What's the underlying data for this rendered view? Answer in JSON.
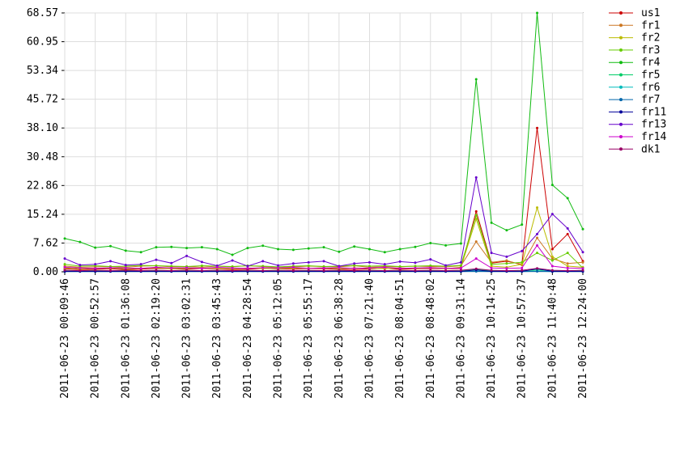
{
  "chart_data": {
    "type": "line",
    "categories": [
      "2011-06-23 00:09:46",
      null,
      "2011-06-23 00:52:57",
      null,
      "2011-06-23 01:36:08",
      null,
      "2011-06-23 02:19:20",
      null,
      "2011-06-23 03:02:31",
      null,
      "2011-06-23 03:45:43",
      null,
      "2011-06-23 04:28:54",
      null,
      "2011-06-23 05:12:05",
      null,
      "2011-06-23 05:55:17",
      null,
      "2011-06-23 06:38:28",
      null,
      "2011-06-23 07:21:40",
      null,
      "2011-06-23 08:04:51",
      null,
      "2011-06-23 08:48:02",
      null,
      "2011-06-23 09:31:14",
      null,
      "2011-06-23 10:14:25",
      null,
      "2011-06-23 10:57:37",
      null,
      "2011-06-23 11:40:48",
      null,
      "2011-06-23 12:24:00"
    ],
    "ylim": [
      0,
      68.57
    ],
    "yticks": [
      {
        "value": 0,
        "label": "0.00"
      },
      7.62,
      15.24,
      22.86,
      30.48,
      {
        "value": 38.1,
        "label": "38.10"
      },
      45.72,
      53.34,
      60.95,
      68.57
    ],
    "grid": true,
    "legend": "right",
    "series": [
      {
        "name": "us1",
        "color": "#cc0000",
        "values": [
          0.8,
          0.6,
          0.7,
          0.8,
          0.6,
          0.7,
          0.9,
          0.8,
          0.7,
          0.9,
          0.8,
          0.6,
          0.7,
          0.9,
          0.8,
          0.7,
          0.9,
          0.8,
          0.7,
          0.6,
          0.8,
          0.9,
          0.7,
          0.8,
          0.9,
          0.8,
          0.9,
          16,
          2.3,
          2.8,
          2,
          38.1,
          6,
          10,
          2.8
        ]
      },
      {
        "name": "fr1",
        "color": "#cc7722",
        "values": [
          1.5,
          1.2,
          1.3,
          1.4,
          1.2,
          1.5,
          1.6,
          1.3,
          1.4,
          1.2,
          1.5,
          1.3,
          1.6,
          1.4,
          1.2,
          1.3,
          1.5,
          1.4,
          1.3,
          1.6,
          1.2,
          1.4,
          1.3,
          1.5,
          1.4,
          1.3,
          1.6,
          8,
          2.5,
          3,
          1.8,
          9,
          3.5,
          2.2,
          2.5
        ]
      },
      {
        "name": "fr2",
        "color": "#bbbb00",
        "values": [
          1,
          0.8,
          0.9,
          1,
          0.8,
          0.9,
          1.1,
          0.8,
          0.9,
          1,
          0.9,
          0.8,
          1,
          0.9,
          0.8,
          1,
          0.9,
          1.1,
          0.8,
          1,
          0.9,
          0.8,
          1,
          0.9,
          1.1,
          0.8,
          1.2,
          14,
          1.5,
          1.2,
          2,
          17,
          4,
          1.5,
          1.2
        ]
      },
      {
        "name": "fr3",
        "color": "#66cc00",
        "values": [
          2,
          1.5,
          1.6,
          1.4,
          1.5,
          1.7,
          1.6,
          1.5,
          1.4,
          1.6,
          1.5,
          1.4,
          1.6,
          1.5,
          1.3,
          1.5,
          1.6,
          1.4,
          1.5,
          1.7,
          1.5,
          1.6,
          1.4,
          1.5,
          1.6,
          1.5,
          1.7,
          15,
          2,
          2.2,
          2.5,
          5,
          3,
          5,
          1
        ]
      },
      {
        "name": "fr4",
        "color": "#11bb11",
        "values": [
          8.8,
          7.9,
          6.4,
          6.8,
          5.6,
          5.2,
          6.5,
          6.6,
          6.3,
          6.5,
          6,
          4.5,
          6.3,
          6.9,
          6,
          5.8,
          6.2,
          6.5,
          5.3,
          6.7,
          6,
          5.2,
          6,
          6.6,
          7.6,
          7,
          7.5,
          51,
          13,
          11,
          12.5,
          68.57,
          23,
          19.5,
          11.3
        ]
      },
      {
        "name": "fr5",
        "color": "#00cc66",
        "values": [
          0.3,
          0.2,
          0.3,
          0.2,
          0.3,
          0.2,
          0.3,
          0.2,
          0.3,
          0.2,
          0.3,
          0.2,
          0.3,
          0.2,
          0.3,
          0.2,
          0.3,
          0.2,
          0.3,
          0.2,
          0.3,
          0.2,
          0.3,
          0.2,
          0.3,
          0.2,
          0.3,
          0.6,
          0.3,
          0.2,
          0.3,
          0.5,
          0.3,
          0.2,
          0.3
        ]
      },
      {
        "name": "fr6",
        "color": "#00bbbb",
        "values": [
          0.1,
          0.1,
          0.1,
          0.1,
          0.1,
          0.1,
          0.1,
          0.1,
          0.1,
          0.1,
          0.1,
          0.1,
          0.1,
          0.1,
          0.1,
          0.1,
          0.1,
          0.1,
          0.1,
          0.1,
          0.1,
          0.1,
          0.1,
          0.1,
          0.1,
          0.1,
          0.1,
          0.2,
          0.1,
          0.1,
          0.1,
          0.2,
          0.1,
          0.1,
          0.1
        ]
      },
      {
        "name": "fr7",
        "color": "#0066aa",
        "values": [
          0.05,
          0.05,
          0.05,
          0.05,
          0.05,
          0.05,
          0.05,
          0.05,
          0.05,
          0.05,
          0.05,
          0.05,
          0.05,
          0.05,
          0.05,
          0.05,
          0.05,
          0.05,
          0.05,
          0.05,
          0.05,
          0.05,
          0.05,
          0.05,
          0.05,
          0.05,
          0.05,
          0.1,
          0.05,
          0.05,
          0.05,
          0.1,
          0.05,
          0.05,
          0.05
        ]
      },
      {
        "name": "fr11",
        "color": "#000099",
        "values": [
          0.1,
          0.1,
          0.1,
          0.1,
          0.1,
          0.1,
          0.1,
          0.1,
          0.1,
          0.1,
          0.1,
          0.1,
          0.1,
          0.1,
          0.1,
          0.1,
          0.1,
          0.1,
          0.1,
          0.1,
          0.1,
          0.1,
          0.1,
          0.1,
          0.1,
          0.1,
          0.1,
          0.5,
          0.1,
          0.1,
          0.1,
          0.8,
          0.1,
          0.1,
          0.1
        ]
      },
      {
        "name": "fr13",
        "color": "#6600cc",
        "values": [
          3.5,
          1.8,
          2,
          2.8,
          1.8,
          2,
          3.2,
          2.3,
          4.2,
          2.6,
          1.6,
          3,
          1.5,
          2.8,
          1.7,
          2.2,
          2.5,
          2.8,
          1.5,
          2.2,
          2.5,
          2,
          2.7,
          2.4,
          3.3,
          1.7,
          2.5,
          25,
          5,
          4,
          5.5,
          10,
          15.3,
          11.5,
          5.2
        ]
      },
      {
        "name": "fr14",
        "color": "#cc00cc",
        "values": [
          1.2,
          1,
          0.9,
          1.1,
          1,
          0.9,
          1.2,
          1,
          1.1,
          0.9,
          1.2,
          1,
          0.9,
          1.1,
          1,
          1.2,
          0.9,
          1,
          1.1,
          0.9,
          1,
          1.2,
          0.9,
          1,
          1.1,
          0.9,
          1,
          3.5,
          1,
          0.9,
          1,
          7,
          1.5,
          1,
          0.9
        ]
      },
      {
        "name": "dk1",
        "color": "#990066",
        "values": [
          0.4,
          0.3,
          0.4,
          0.3,
          0.4,
          0.3,
          0.4,
          0.3,
          0.4,
          0.3,
          0.4,
          0.3,
          0.4,
          0.3,
          0.4,
          0.3,
          0.4,
          0.3,
          0.4,
          0.3,
          0.4,
          0.3,
          0.4,
          0.3,
          0.4,
          0.3,
          0.4,
          0.8,
          0.4,
          0.3,
          0.4,
          0.9,
          0.4,
          0.3,
          0.4
        ]
      }
    ]
  }
}
